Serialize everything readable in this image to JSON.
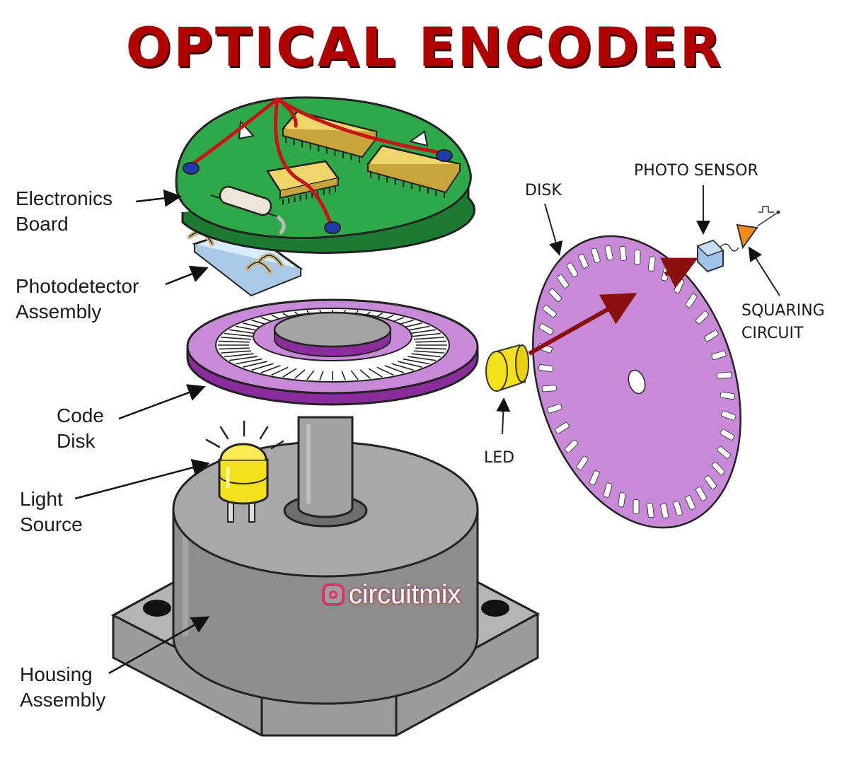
{
  "title": "OPTICAL ENCODER",
  "left_labels": {
    "electronics_board": [
      "Electronics",
      "Board"
    ],
    "photodetector_assembly": [
      "Photodetector",
      "Assembly"
    ],
    "code_disk": [
      "Code",
      "Disk"
    ],
    "light_source": [
      "Light",
      "Source"
    ],
    "housing_assembly": [
      "Housing",
      "Assembly"
    ]
  },
  "right_labels": {
    "disk": "DISK",
    "photo_sensor": "PHOTO SENSOR",
    "squaring_circuit": [
      "SQUARING",
      "CIRCUIT"
    ],
    "led": "LED"
  },
  "watermark": "circuitmix",
  "colors": {
    "title": "#b00000",
    "board": "#2fa84a",
    "disk": "#c88ad8",
    "housing": "#9a9a9a",
    "led": "#f4e21c",
    "arrow": "#8a0f0f"
  }
}
